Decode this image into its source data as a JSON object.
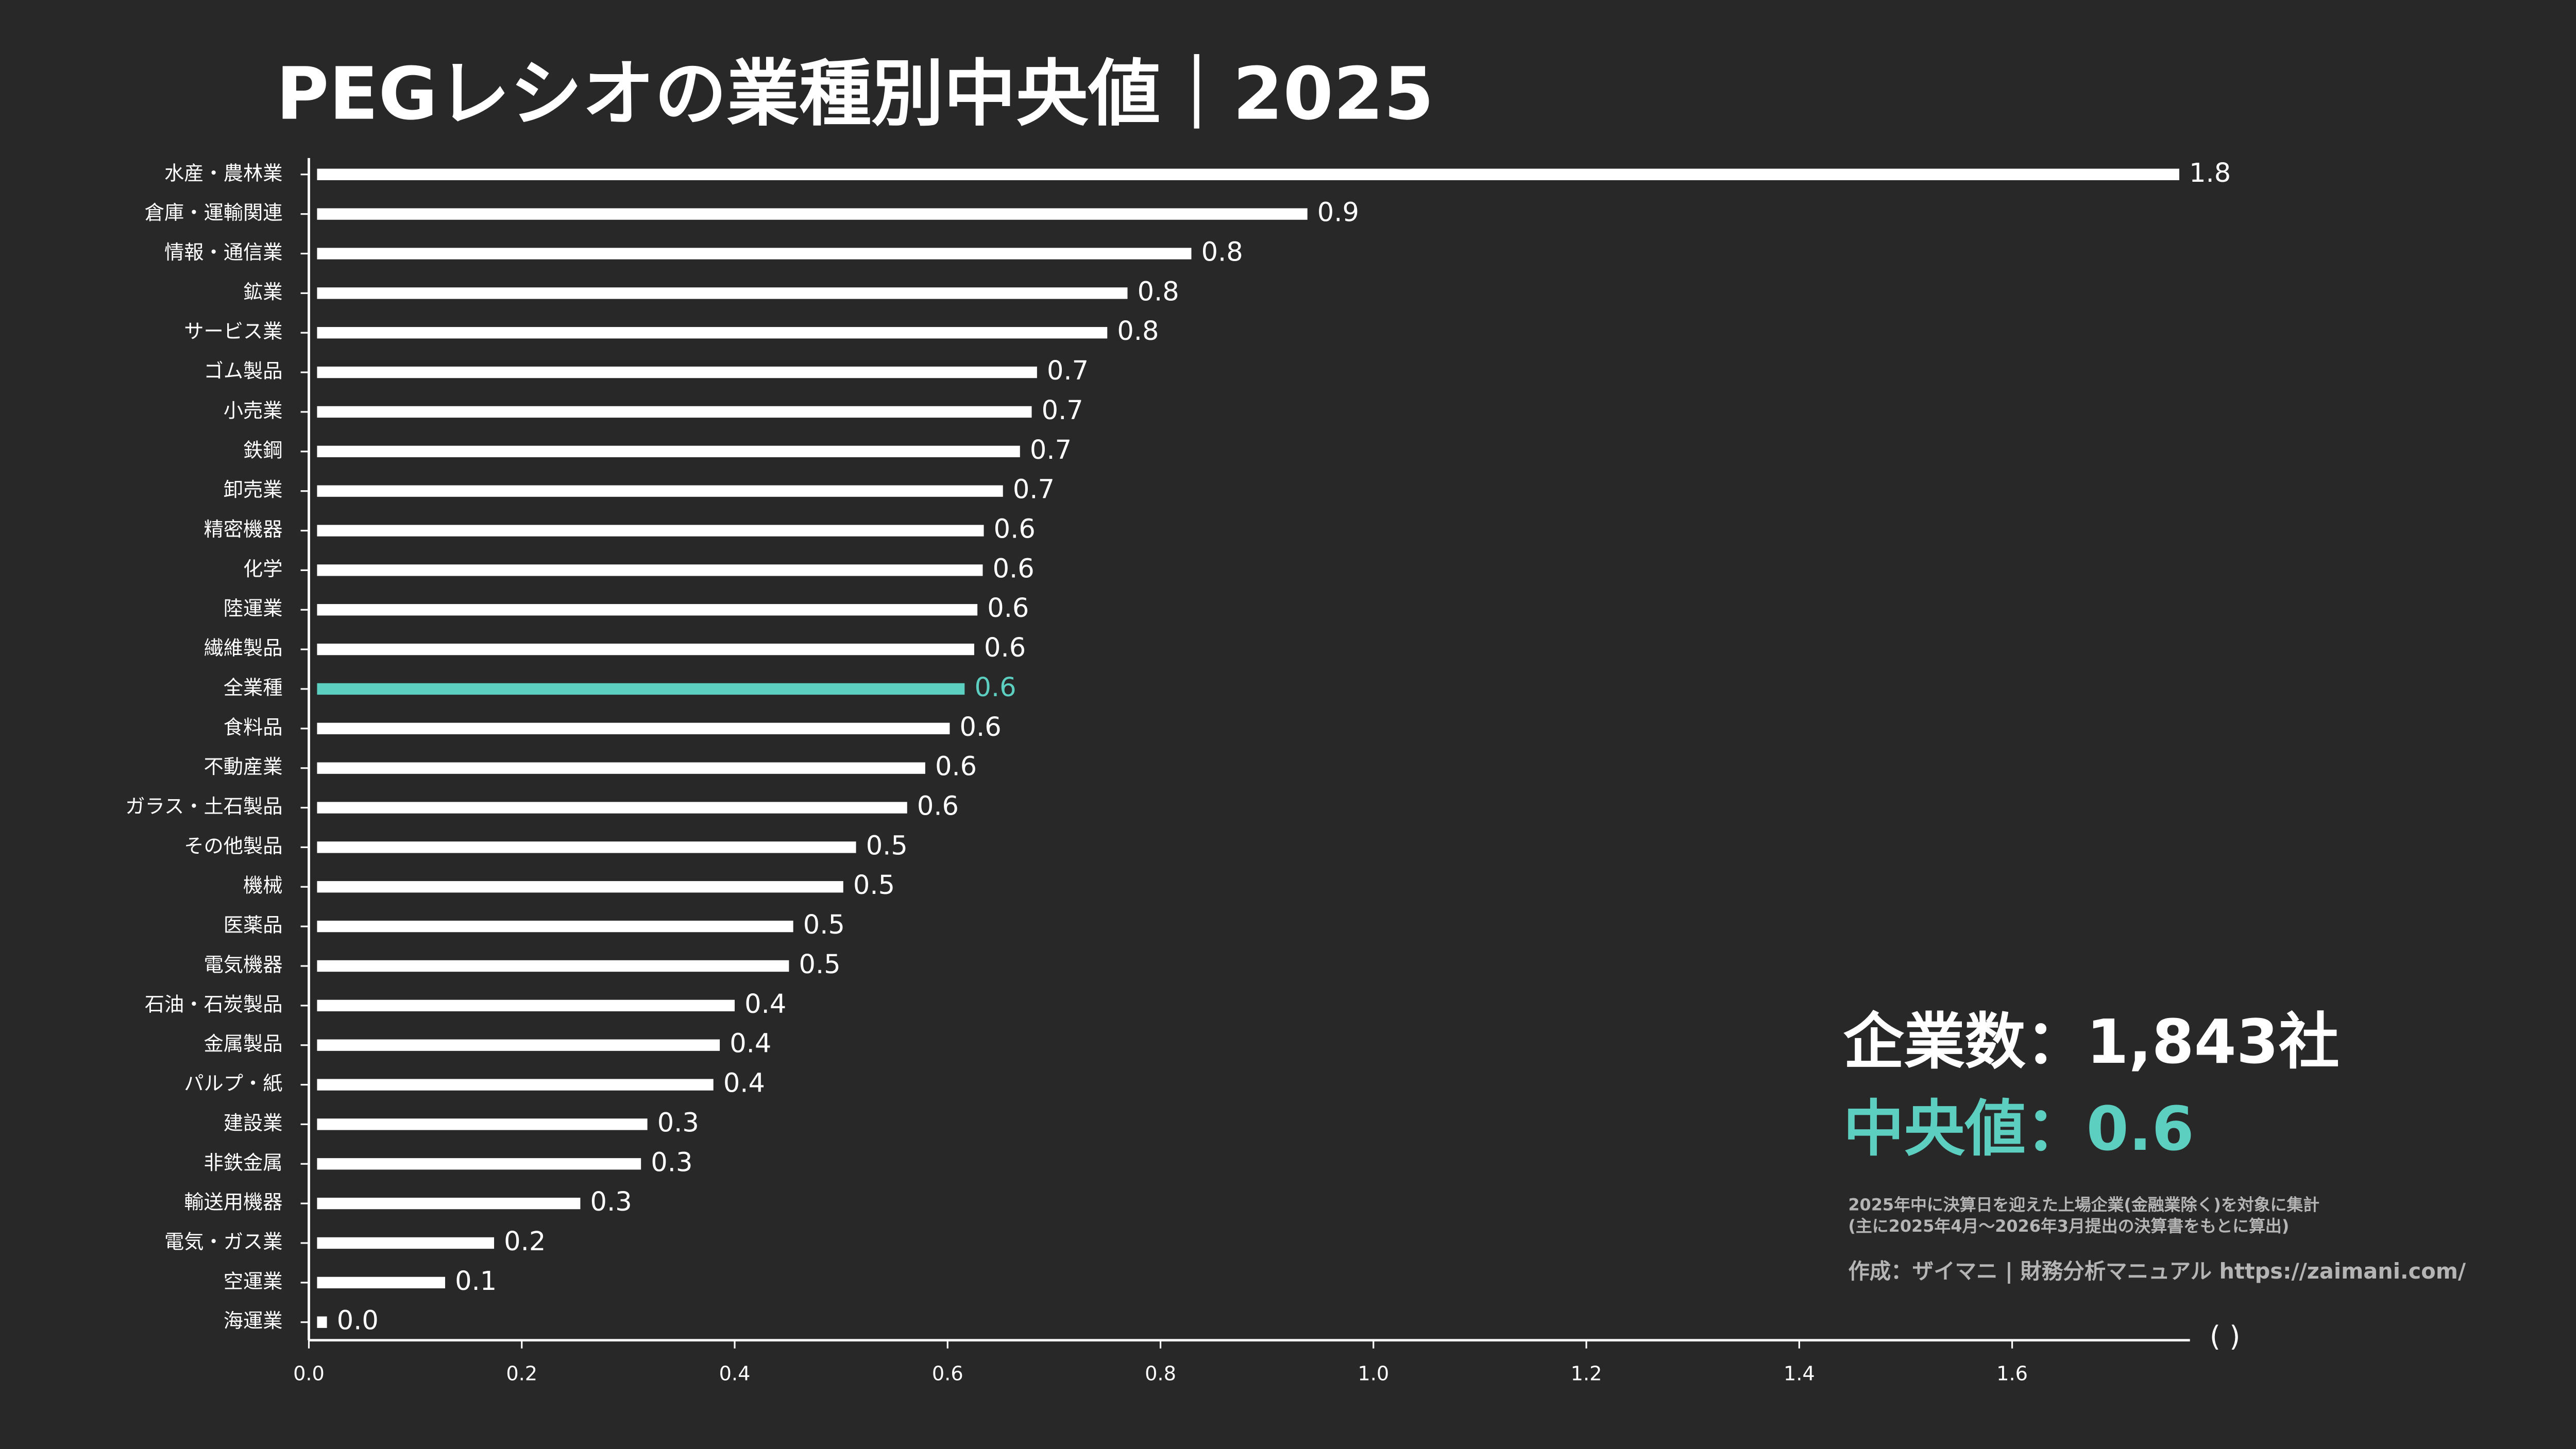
{
  "chart_data": {
    "type": "barh",
    "title": "PEGレシオの業種別中央値｜2025",
    "xlabel": "( )",
    "categories": [
      "水産・農林業",
      "倉庫・運輸関連",
      "情報・通信業",
      "鉱業",
      "サービス業",
      "ゴム製品",
      "小売業",
      "鉄鋼",
      "卸売業",
      "精密機器",
      "化学",
      "陸運業",
      "繊維製品",
      "全業種",
      "食料品",
      "不動産業",
      "ガラス・土石製品",
      "その他製品",
      "機械",
      "医薬品",
      "電気機器",
      "石油・石炭製品",
      "金属製品",
      "パルプ・紙",
      "建設業",
      "非鉄金属",
      "輸送用機器",
      "電気・ガス業",
      "空運業",
      "海運業"
    ],
    "values": [
      1.757,
      0.938,
      0.829,
      0.769,
      0.75,
      0.684,
      0.679,
      0.668,
      0.652,
      0.634,
      0.633,
      0.628,
      0.625,
      0.616,
      0.602,
      0.579,
      0.562,
      0.514,
      0.502,
      0.455,
      0.451,
      0.4,
      0.386,
      0.38,
      0.318,
      0.312,
      0.255,
      0.174,
      0.128,
      0.01
    ],
    "value_labels": [
      "1.8",
      "0.9",
      "0.8",
      "0.8",
      "0.8",
      "0.7",
      "0.7",
      "0.7",
      "0.7",
      "0.6",
      "0.6",
      "0.6",
      "0.6",
      "0.6",
      "0.6",
      "0.6",
      "0.6",
      "0.5",
      "0.5",
      "0.5",
      "0.5",
      "0.4",
      "0.4",
      "0.4",
      "0.3",
      "0.3",
      "0.3",
      "0.2",
      "0.1",
      "0.0"
    ],
    "colors": [
      "#ffffff",
      "#ffffff",
      "#ffffff",
      "#ffffff",
      "#ffffff",
      "#ffffff",
      "#ffffff",
      "#ffffff",
      "#ffffff",
      "#ffffff",
      "#ffffff",
      "#ffffff",
      "#ffffff",
      "#5ccfc1",
      "#ffffff",
      "#ffffff",
      "#ffffff",
      "#ffffff",
      "#ffffff",
      "#ffffff",
      "#ffffff",
      "#ffffff",
      "#ffffff",
      "#ffffff",
      "#ffffff",
      "#ffffff",
      "#ffffff",
      "#ffffff",
      "#ffffff",
      "#ffffff"
    ],
    "xlim": [
      0,
      1.767
    ],
    "xticks": [
      {
        "value": 0,
        "label": "0.0"
      },
      0.2,
      0.4,
      0.6,
      0.8,
      {
        "value": 1,
        "label": "1.0"
      },
      1.2,
      1.4,
      1.6
    ],
    "company_count": "企業数：1,843社",
    "median_text": "中央値：0.6",
    "note_1": "2025年中に決算日を迎えた上場企業(金融業除く)を対象に集計",
    "note_2": "(主に2025年4月～2026年3月提出の決算書をもとに算出)",
    "credit": "作成：ザイマニ | 財務分析マニュアル https://zaimani.com/"
  }
}
